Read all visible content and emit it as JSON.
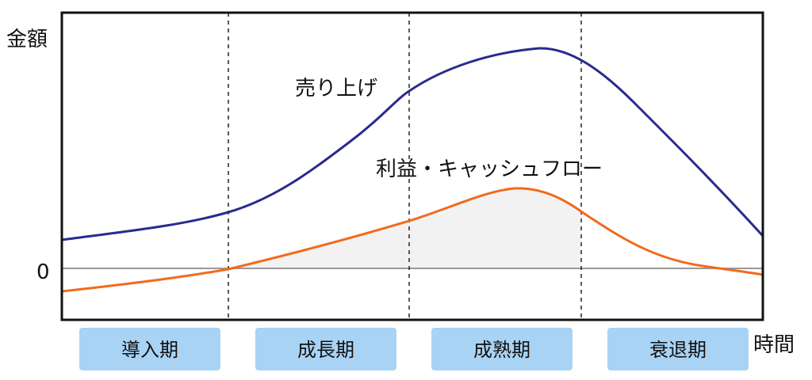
{
  "y_axis_label": "金額",
  "x_axis_label": "時間",
  "zero_label": "0",
  "phases": [
    "導入期",
    "成長期",
    "成熟期",
    "衰退期"
  ],
  "curves": {
    "sales_label": "売り上げ",
    "profit_label": "利益・キャッシュフロー"
  },
  "colors": {
    "sales": "#2a2a8c",
    "profit": "#f26a1b",
    "phase_box": "#a9d3f5",
    "zero_line": "#999999",
    "profit_fill": "#f2f2f2"
  }
}
